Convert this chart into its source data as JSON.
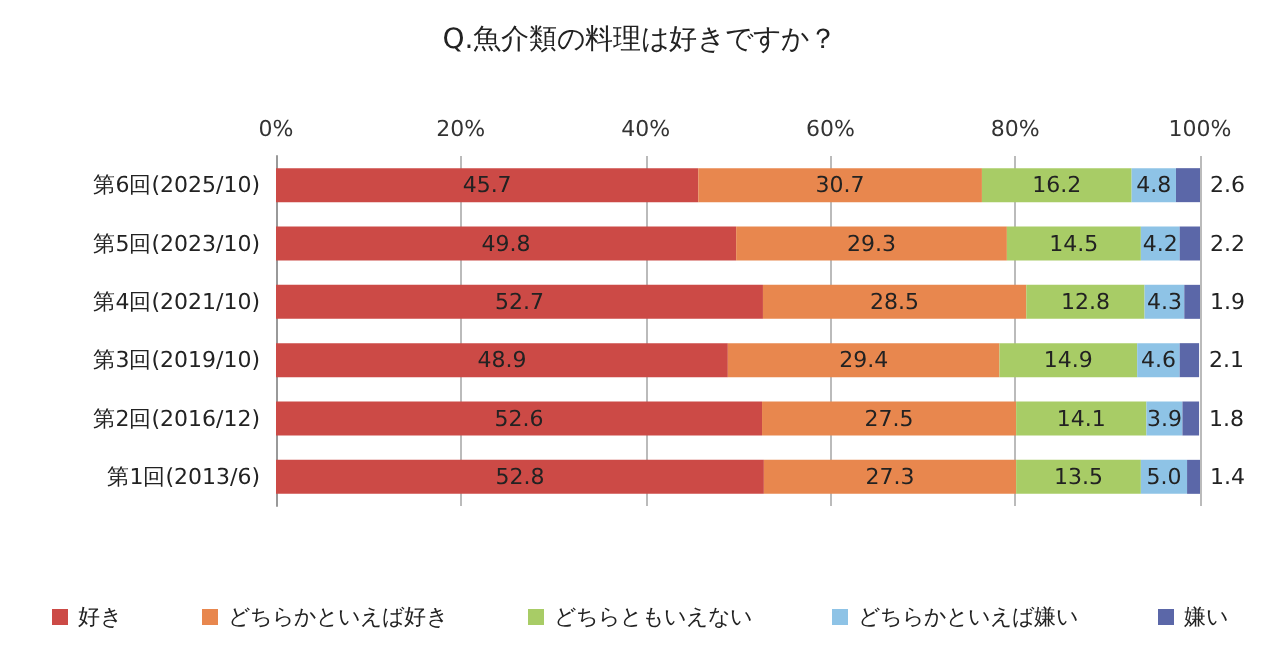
{
  "chart_data": {
    "type": "bar",
    "orientation": "horizontal",
    "stacked": true,
    "title": "Q.魚介類の料理は好きですか？",
    "categories": [
      "第6回(2025/10)",
      "第5回(2023/10)",
      "第4回(2021/10)",
      "第3回(2019/10)",
      "第2回(2016/12)",
      "第1回(2013/6)"
    ],
    "series": [
      {
        "name": "好き",
        "color": "#cc4a46",
        "values": [
          45.7,
          49.8,
          52.7,
          48.9,
          52.6,
          52.8
        ],
        "value_labels": [
          "45.7",
          "49.8",
          "52.7",
          "48.9",
          "52.6",
          "52.8"
        ]
      },
      {
        "name": "どちらかといえば好き",
        "color": "#e8874e",
        "values": [
          30.7,
          29.3,
          28.5,
          29.4,
          27.5,
          27.3
        ],
        "value_labels": [
          "30.7",
          "29.3",
          "28.5",
          "29.4",
          "27.5",
          "27.3"
        ]
      },
      {
        "name": "どちらともいえない",
        "color": "#a8cc66",
        "values": [
          16.2,
          14.5,
          12.8,
          14.9,
          14.1,
          13.5
        ],
        "value_labels": [
          "16.2",
          "14.5",
          "12.8",
          "14.9",
          "14.1",
          "13.5"
        ]
      },
      {
        "name": "どちらかといえば嫌い",
        "color": "#8ec3e6",
        "values": [
          4.8,
          4.2,
          4.3,
          4.6,
          3.9,
          5.0
        ],
        "value_labels": [
          "4.8",
          "4.2",
          "4.3",
          "4.6",
          "3.9",
          "5.0"
        ]
      },
      {
        "name": "嫌い",
        "color": "#5b67a8",
        "values": [
          2.6,
          2.2,
          1.9,
          2.1,
          1.8,
          1.4
        ],
        "value_labels": [
          "2.6",
          "2.2",
          "1.9",
          "2.1",
          "1.8",
          "1.4"
        ]
      }
    ],
    "xlim": [
      0,
      100
    ],
    "xticks": [
      {
        "value": 0,
        "label": "0%"
      },
      {
        "value": 20,
        "label": "20%"
      },
      {
        "value": 40,
        "label": "40%"
      },
      {
        "value": 60,
        "label": "60%"
      },
      {
        "value": 80,
        "label": "80%"
      },
      {
        "value": 100,
        "label": "100%"
      }
    ],
    "grid": "x",
    "legend": "bottom"
  }
}
